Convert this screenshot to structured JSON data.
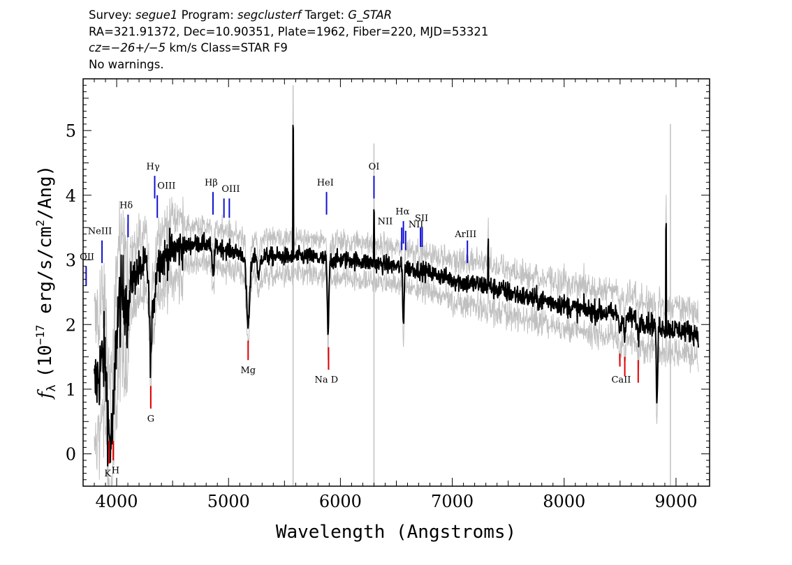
{
  "header": {
    "line1": {
      "survey_label": "Survey:",
      "survey": "segue1",
      "program_label": "Program:",
      "program": "segclusterf",
      "target_label": "Target:",
      "target": "G_STAR"
    },
    "line2": "RA=321.91372, Dec=10.90351, Plate=1962, Fiber=220, MJD=53321",
    "line3": {
      "cz": "cz=−26+/−5",
      "units_class": "km/s Class=STAR F9"
    },
    "line4": "No warnings."
  },
  "colors": {
    "flux": "#000000",
    "error": "#c0c0c0",
    "emission_marker": "#1010d0",
    "absorption_marker": "#e00000"
  },
  "chart_data": {
    "type": "line",
    "xlabel": "Wavelength (Angstroms)",
    "ylabel": "f_λ (10^-17 erg/s/cm^2/Ang)",
    "ylabel_parts": {
      "symbol": "f",
      "sub": "λ",
      "pre": "(10",
      "exp1": "−17",
      "mid": " erg/s/cm",
      "exp2": "2",
      "post": "/Ang)"
    },
    "xlim": [
      3700,
      9300
    ],
    "ylim": [
      -0.5,
      5.8
    ],
    "xticks": [
      4000,
      5000,
      6000,
      7000,
      8000,
      9000
    ],
    "yticks": [
      0,
      1,
      2,
      3,
      4,
      5
    ],
    "xtick_labels": [
      "4000",
      "5000",
      "6000",
      "7000",
      "8000",
      "9000"
    ],
    "ytick_labels": [
      "0",
      "1",
      "2",
      "3",
      "4",
      "5"
    ],
    "grid": false,
    "legend": "none",
    "continuum": {
      "x": [
        3800,
        3850,
        3900,
        3950,
        4000,
        4100,
        4200,
        4300,
        4400,
        4500,
        4600,
        4700,
        4800,
        4900,
        5000,
        5100,
        5300,
        5500,
        5700,
        5900,
        6100,
        6300,
        6500,
        6700,
        6900,
        7100,
        7300,
        7500,
        7700,
        7900,
        8100,
        8300,
        8500,
        8700,
        8900,
        9100,
        9200
      ],
      "y": [
        1.0,
        1.3,
        1.7,
        1.9,
        2.2,
        2.6,
        2.85,
        2.95,
        3.0,
        3.15,
        3.2,
        3.25,
        3.25,
        3.2,
        3.15,
        3.1,
        3.05,
        3.05,
        3.05,
        3.0,
        3.0,
        2.95,
        2.9,
        2.85,
        2.75,
        2.65,
        2.6,
        2.5,
        2.4,
        2.35,
        2.25,
        2.2,
        2.15,
        2.05,
        1.95,
        1.9,
        1.85
      ]
    },
    "features": [
      {
        "x": 3935,
        "y": 0.4,
        "w": 30
      },
      {
        "x": 3970,
        "y": 0.9,
        "w": 25
      },
      {
        "x": 4102,
        "y": 2.1,
        "w": 15
      },
      {
        "x": 4305,
        "y": 1.5,
        "w": 18
      },
      {
        "x": 4340,
        "y": 2.5,
        "w": 15
      },
      {
        "x": 4861,
        "y": 2.8,
        "w": 15
      },
      {
        "x": 5175,
        "y": 2.0,
        "w": 22
      },
      {
        "x": 5270,
        "y": 2.7,
        "w": 14
      },
      {
        "x": 5890,
        "y": 1.85,
        "w": 10
      },
      {
        "x": 6563,
        "y": 2.0,
        "w": 8
      },
      {
        "x": 8498,
        "y": 1.9,
        "w": 10
      },
      {
        "x": 8542,
        "y": 1.75,
        "w": 10
      },
      {
        "x": 8662,
        "y": 1.8,
        "w": 10
      },
      {
        "x": 8830,
        "y": 0.7,
        "w": 8
      }
    ],
    "spikes": [
      {
        "x": 5577,
        "y": 4.95
      },
      {
        "x": 6300,
        "y": 3.75
      },
      {
        "x": 7320,
        "y": 3.25
      },
      {
        "x": 8910,
        "y": 3.5
      }
    ],
    "error_spikes": [
      {
        "x": 5577,
        "y": 5.7
      },
      {
        "x": 6300,
        "y": 4.8
      },
      {
        "x": 8830,
        "y": -0.5
      },
      {
        "x": 8950,
        "y": 5.1
      }
    ],
    "emission_lines": [
      {
        "label": "OII",
        "x": 3727,
        "y0": 2.6,
        "y1": 2.9,
        "tx": 3735,
        "ty": 3.0
      },
      {
        "label": "NeIII",
        "x": 3869,
        "y0": 2.95,
        "y1": 3.3,
        "tx": 3850,
        "ty": 3.4
      },
      {
        "label": "Hδ",
        "x": 4102,
        "y0": 3.35,
        "y1": 3.7,
        "tx": 4085,
        "ty": 3.8
      },
      {
        "label": "Hγ",
        "x": 4340,
        "y0": 3.95,
        "y1": 4.3,
        "tx": 4325,
        "ty": 4.4
      },
      {
        "label": "OIII",
        "x": 4363,
        "y0": 3.65,
        "y1": 4.0,
        "tx": 4445,
        "ty": 4.1
      },
      {
        "label": "Hβ",
        "x": 4861,
        "y0": 3.7,
        "y1": 4.05,
        "tx": 4845,
        "ty": 4.15
      },
      {
        "label": "OIII",
        "x": 4959,
        "y0": 3.65,
        "y1": 3.95,
        "tx": 5020,
        "ty": 4.05
      },
      {
        "label": "OIII",
        "x": 5007,
        "y0": 3.65,
        "y1": 3.95,
        "tx": null,
        "ty": null
      },
      {
        "label": "HeI",
        "x": 5876,
        "y0": 3.7,
        "y1": 4.05,
        "tx": 5865,
        "ty": 4.15
      },
      {
        "label": "OI",
        "x": 6300,
        "y0": 3.95,
        "y1": 4.3,
        "tx": 6300,
        "ty": 4.4
      },
      {
        "label": "NII",
        "x": 6548,
        "y0": 3.15,
        "y1": 3.5,
        "tx": 6400,
        "ty": 3.55
      },
      {
        "label": "Hα",
        "x": 6563,
        "y0": 3.25,
        "y1": 3.6,
        "tx": 6555,
        "ty": 3.7
      },
      {
        "label": "NII",
        "x": 6583,
        "y0": 3.15,
        "y1": 3.45,
        "tx": 6675,
        "ty": 3.5
      },
      {
        "label": "SII",
        "x": 6716,
        "y0": 3.2,
        "y1": 3.5,
        "tx": 6725,
        "ty": 3.6
      },
      {
        "label": "SII",
        "x": 6731,
        "y0": 3.2,
        "y1": 3.5,
        "tx": null,
        "ty": null
      },
      {
        "label": "ArIII",
        "x": 7135,
        "y0": 2.95,
        "y1": 3.3,
        "tx": 7120,
        "ty": 3.35
      }
    ],
    "absorption_lines": [
      {
        "label": "K",
        "x": 3934,
        "y0": -0.15,
        "y1": 0.2,
        "tx": 3920,
        "ty": -0.35
      },
      {
        "label": "H",
        "x": 3969,
        "y0": -0.1,
        "y1": 0.2,
        "tx": 3990,
        "ty": -0.3
      },
      {
        "label": "G",
        "x": 4305,
        "y0": 0.7,
        "y1": 1.05,
        "tx": 4305,
        "ty": 0.5
      },
      {
        "label": "Mg",
        "x": 5175,
        "y0": 1.45,
        "y1": 1.75,
        "tx": 5175,
        "ty": 1.25
      },
      {
        "label": "Na D",
        "x": 5894,
        "y0": 1.3,
        "y1": 1.65,
        "tx": 5875,
        "ty": 1.1
      },
      {
        "label": "CaII",
        "x": 8498,
        "y0": 1.35,
        "y1": 1.55,
        "tx": 8510,
        "ty": 1.1
      },
      {
        "label": "CaII",
        "x": 8542,
        "y0": 1.2,
        "y1": 1.5,
        "tx": null,
        "ty": null
      },
      {
        "label": "CaII",
        "x": 8662,
        "y0": 1.1,
        "y1": 1.45,
        "tx": null,
        "ty": null
      }
    ]
  }
}
